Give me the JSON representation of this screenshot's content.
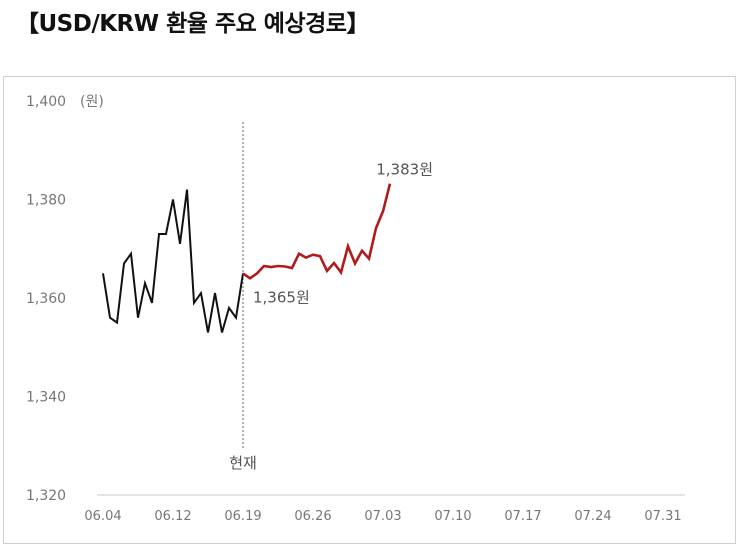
{
  "title": "【USD/KRW 환율 주요 예상경로】",
  "chart_data": {
    "type": "line",
    "ylabel": "(원)",
    "ylim": [
      1320,
      1400
    ],
    "yticks": [
      "1,400",
      "1,380",
      "1,360",
      "1,340",
      "1,320"
    ],
    "ytick_values": [
      1400,
      1380,
      1360,
      1340,
      1320
    ],
    "xtick_labels": [
      "06.04",
      "06.12",
      "06.19",
      "06.26",
      "07.03",
      "07.10",
      "07.17",
      "07.24",
      "07.31"
    ],
    "current_label": "현재",
    "annotations": {
      "current_value": "1,365원",
      "end_value": "1,383원"
    },
    "colors": {
      "actual": "#111111",
      "forecast": "#b01c1c",
      "axis": "#c8c8c8",
      "divider": "#666666"
    },
    "series": [
      {
        "values": [
          1365,
          1356,
          1355,
          1367,
          1369,
          1356,
          1363,
          1359,
          1373,
          1373,
          1380,
          1371,
          1382,
          1359,
          1361,
          1353,
          1361,
          1353,
          1358,
          1356,
          1365
        ]
      },
      {
        "values": [
          1365,
          1364,
          1365,
          1366.5,
          1366.3,
          1366.5,
          1366.4,
          1366.1,
          1369,
          1368.2,
          1368.8,
          1368.5,
          1365.5,
          1367.1,
          1365.2,
          1370.5,
          1367,
          1369.6,
          1368,
          1374.2,
          1377.6,
          1383.2
        ]
      }
    ]
  }
}
